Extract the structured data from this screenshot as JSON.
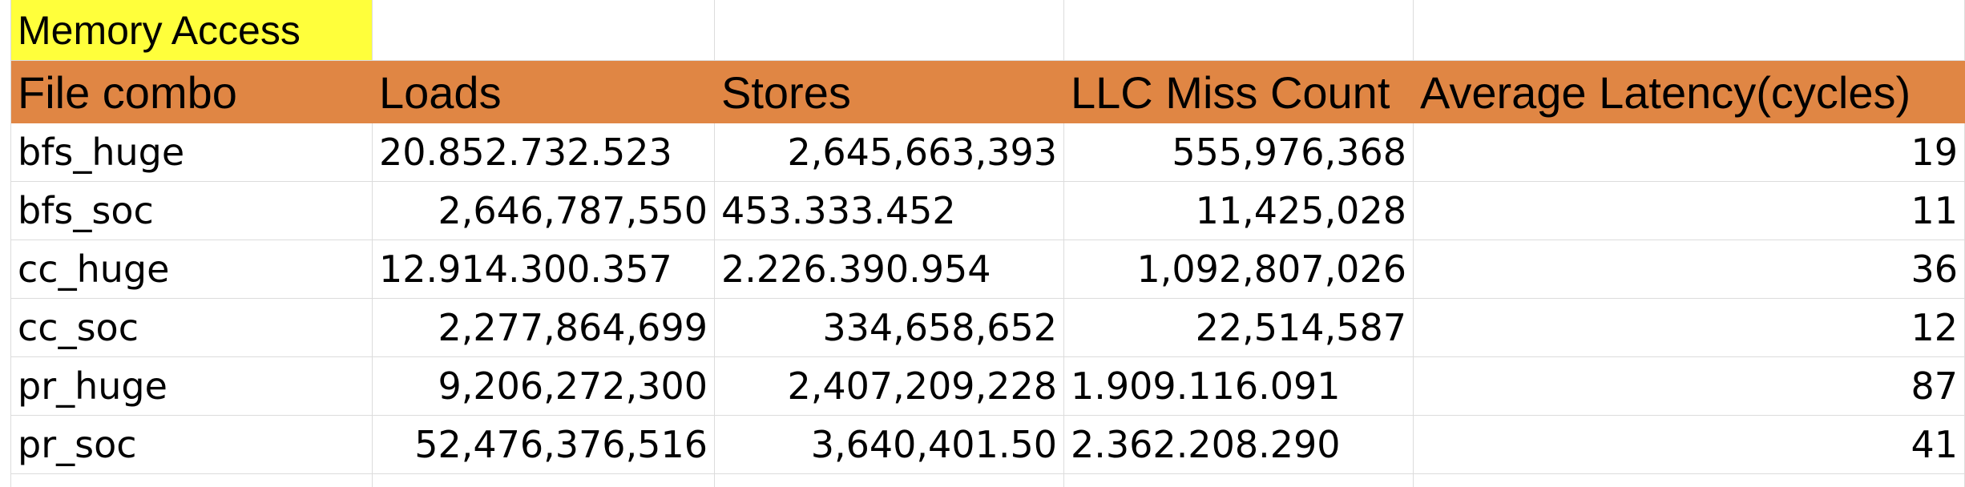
{
  "sheet": {
    "title": "Memory Access",
    "columns": [
      "File combo",
      "Loads",
      "Stores",
      "LLC Miss Count",
      "Average Latency(cycles)"
    ],
    "rows": [
      {
        "file_combo": "bfs_huge",
        "loads": "20.852.732.523",
        "stores": "2,645,663,393",
        "llc_miss_count": "555,976,368",
        "avg_latency": "19"
      },
      {
        "file_combo": "bfs_soc",
        "loads": "2,646,787,550",
        "stores": "453.333.452",
        "llc_miss_count": "11,425,028",
        "avg_latency": "11"
      },
      {
        "file_combo": "cc_huge",
        "loads": "12.914.300.357",
        "stores": "2.226.390.954",
        "llc_miss_count": "1,092,807,026",
        "avg_latency": "36"
      },
      {
        "file_combo": "cc_soc",
        "loads": "2,277,864,699",
        "stores": "334,658,652",
        "llc_miss_count": "22,514,587",
        "avg_latency": "12"
      },
      {
        "file_combo": "pr_huge",
        "loads": "9,206,272,300",
        "stores": "2,407,209,228",
        "llc_miss_count": "1.909.116.091",
        "avg_latency": "87"
      },
      {
        "file_combo": "pr_soc",
        "loads": "52,476,376,516",
        "stores": "3,640,401.50",
        "llc_miss_count": "2.362.208.290",
        "avg_latency": "41"
      }
    ]
  },
  "colors": {
    "title_highlight": "#ffff3b",
    "header_fill": "#e08644",
    "gridline": "#dcdcdc"
  }
}
